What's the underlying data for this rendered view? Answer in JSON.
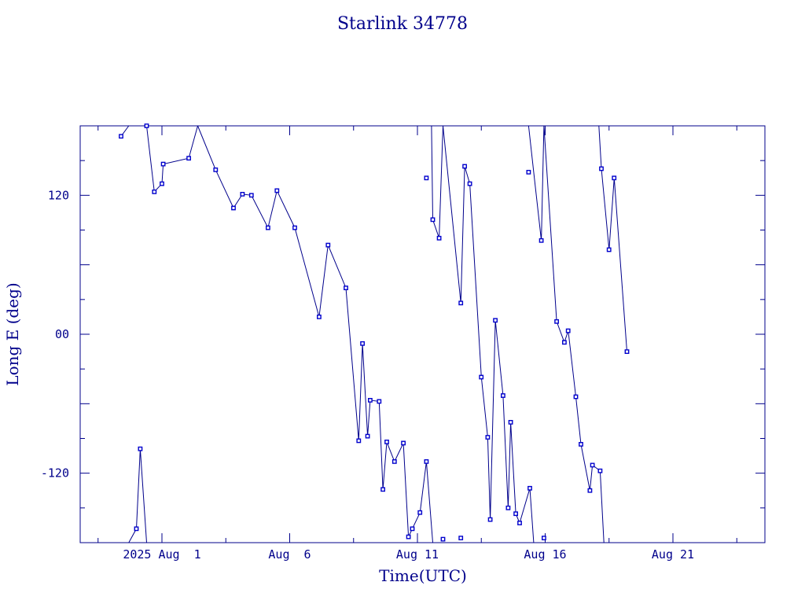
{
  "chart_data": {
    "type": "line",
    "title": "Starlink 34778",
    "xlabel": "Time(UTC)",
    "ylabel": "Long E (deg)",
    "x_unit": "days",
    "xlim": [
      -3.2,
      23.6
    ],
    "ylim": [
      -180,
      180
    ],
    "x_ticks": [
      {
        "value": 0,
        "label": "2025 Aug  1"
      },
      {
        "value": 5,
        "label": "Aug  6"
      },
      {
        "value": 10,
        "label": "Aug 11"
      },
      {
        "value": 15,
        "label": "Aug 16"
      },
      {
        "value": 20,
        "label": "Aug 21"
      }
    ],
    "y_ticks": [
      {
        "value": 120,
        "label": "120"
      },
      {
        "value": 0,
        "label": "00"
      },
      {
        "value": -120,
        "label": "-120"
      }
    ],
    "series": [
      {
        "segments": [
          [
            [
              -1.6,
              171
            ],
            [
              -1.3,
              180
            ]
          ],
          [
            [
              -0.6,
              180
            ],
            [
              -0.3,
              123
            ],
            [
              0.0,
              130
            ],
            [
              0.05,
              147
            ],
            [
              1.05,
              152
            ],
            [
              1.4,
              180
            ]
          ],
          [
            [
              1.4,
              180
            ],
            [
              2.1,
              142
            ],
            [
              2.8,
              109
            ],
            [
              3.15,
              121
            ],
            [
              3.5,
              120
            ],
            [
              4.15,
              92
            ],
            [
              4.5,
              124
            ],
            [
              5.2,
              92
            ],
            [
              6.15,
              15
            ],
            [
              6.5,
              77
            ],
            [
              7.2,
              40
            ],
            [
              7.7,
              -92
            ],
            [
              7.85,
              -8
            ],
            [
              8.05,
              -88
            ],
            [
              8.15,
              -57
            ],
            [
              8.5,
              -58
            ],
            [
              8.65,
              -134
            ],
            [
              8.8,
              -93
            ],
            [
              9.1,
              -110
            ],
            [
              9.45,
              -94
            ],
            [
              9.65,
              -175
            ],
            [
              9.8,
              -168
            ],
            [
              10.1,
              -154
            ],
            [
              10.35,
              -110
            ],
            [
              10.6,
              -180
            ]
          ],
          [
            [
              10.35,
              180
            ],
            [
              10.55,
              180
            ],
            [
              10.6,
              99
            ],
            [
              10.85,
              83
            ],
            [
              11.0,
              180
            ]
          ],
          [
            [
              11.0,
              180
            ],
            [
              11.7,
              27
            ],
            [
              11.85,
              145
            ],
            [
              12.05,
              130
            ],
            [
              12.5,
              -37
            ],
            [
              12.75,
              -89
            ],
            [
              12.85,
              -160
            ],
            [
              13.05,
              12
            ],
            [
              13.35,
              -53
            ],
            [
              13.55,
              -150
            ],
            [
              13.65,
              -76
            ],
            [
              13.85,
              -155
            ],
            [
              14.0,
              -163
            ],
            [
              14.4,
              -133
            ],
            [
              14.55,
              -180
            ]
          ],
          [
            [
              14.35,
              180
            ],
            [
              14.55,
              140
            ],
            [
              14.85,
              81
            ],
            [
              14.95,
              180
            ]
          ],
          [
            [
              14.95,
              180
            ],
            [
              15.45,
              11
            ],
            [
              15.75,
              -7
            ],
            [
              15.9,
              3
            ],
            [
              16.2,
              -54
            ],
            [
              16.4,
              -95
            ],
            [
              16.75,
              -135
            ],
            [
              16.85,
              -113
            ],
            [
              17.15,
              -118
            ],
            [
              17.3,
              -180
            ]
          ],
          [
            [
              17.1,
              180
            ],
            [
              17.2,
              143
            ],
            [
              17.5,
              73
            ],
            [
              17.7,
              135
            ],
            [
              18.2,
              -15
            ]
          ]
        ],
        "points": [
          [
            -1.6,
            171
          ],
          [
            -0.3,
            123
          ],
          [
            0.0,
            130
          ],
          [
            0.05,
            147
          ],
          [
            1.05,
            152
          ],
          [
            2.1,
            142
          ],
          [
            2.8,
            109
          ],
          [
            3.15,
            121
          ],
          [
            3.5,
            120
          ],
          [
            4.15,
            92
          ],
          [
            4.5,
            124
          ],
          [
            5.2,
            92
          ],
          [
            6.15,
            15
          ],
          [
            6.5,
            77
          ],
          [
            7.2,
            40
          ],
          [
            7.7,
            -92
          ],
          [
            7.85,
            -8
          ],
          [
            8.05,
            -88
          ],
          [
            8.15,
            -57
          ],
          [
            8.5,
            -58
          ],
          [
            8.65,
            -134
          ],
          [
            8.8,
            -93
          ],
          [
            9.1,
            -110
          ],
          [
            9.45,
            -94
          ],
          [
            9.65,
            -175
          ],
          [
            9.8,
            -168
          ],
          [
            10.1,
            -154
          ],
          [
            10.35,
            -110
          ],
          [
            10.35,
            135
          ],
          [
            10.6,
            99
          ],
          [
            10.85,
            83
          ],
          [
            11.0,
            -177
          ],
          [
            11.7,
            27
          ],
          [
            11.7,
            -176
          ],
          [
            11.85,
            145
          ],
          [
            12.05,
            130
          ],
          [
            12.5,
            -37
          ],
          [
            12.75,
            -89
          ],
          [
            12.85,
            -160
          ],
          [
            13.05,
            12
          ],
          [
            13.35,
            -53
          ],
          [
            13.55,
            -150
          ],
          [
            13.65,
            -76
          ],
          [
            13.85,
            -155
          ],
          [
            14.0,
            -163
          ],
          [
            14.4,
            -133
          ],
          [
            14.35,
            140
          ],
          [
            14.85,
            81
          ],
          [
            14.95,
            -176
          ],
          [
            15.45,
            11
          ],
          [
            15.75,
            -7
          ],
          [
            15.9,
            3
          ],
          [
            16.2,
            -54
          ],
          [
            16.4,
            -95
          ],
          [
            16.75,
            -135
          ],
          [
            16.85,
            -113
          ],
          [
            17.15,
            -118
          ],
          [
            17.2,
            143
          ],
          [
            17.5,
            73
          ],
          [
            17.7,
            135
          ],
          [
            18.2,
            -15
          ]
        ]
      },
      {
        "segments": [
          [
            [
              -1.3,
              -180
            ],
            [
              -1.0,
              -168
            ],
            [
              -0.85,
              -99
            ],
            [
              -0.6,
              -180
            ]
          ]
        ],
        "points": [
          [
            -1.0,
            -168
          ],
          [
            -0.85,
            -99
          ],
          [
            -0.6,
            180
          ]
        ]
      }
    ]
  }
}
